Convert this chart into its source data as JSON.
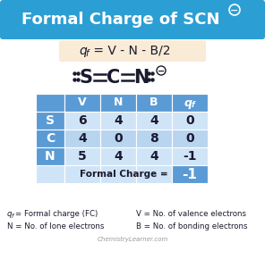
{
  "title": "Formal Charge of SCN",
  "title_superscript": "−",
  "title_bg": "#2b9fd4",
  "title_color": "#ffffff",
  "formula_bg": "#faebd7",
  "white_bg": "#ffffff",
  "table_header_bg": "#5b9bd5",
  "table_row_bg_dark": "#5b9bd5",
  "table_row_bg_light": "#d0e4f7",
  "table_row_bg_alt": "#b8d4ef",
  "table_highlight_bg": "#5b9bd5",
  "table_header_color": "#ffffff",
  "table_data_color": "#1a1a2e",
  "table_headers": [
    "",
    "V",
    "N",
    "B",
    "qf"
  ],
  "table_rows": [
    [
      "S",
      "6",
      "4",
      "4",
      "0"
    ],
    [
      "C",
      "4",
      "0",
      "8",
      "0"
    ],
    [
      "N",
      "5",
      "4",
      "4",
      "-1"
    ]
  ],
  "formal_charge_label": "Formal Charge =",
  "formal_charge_value": "-1",
  "footnote1_left": "q",
  "footnote1_left2": "f",
  "footnote1_left3": " = Formal charge (FC)",
  "footnote1_right": "V = No. of valence electrons",
  "footnote2_left": "N = No. of lone electrons",
  "footnote2_right": "B = No. of bonding electrons",
  "watermark": "ChemistryLearner.com",
  "dot_color": "#1a1a2e",
  "bond_color": "#1a1a2e",
  "text_color": "#1a1a2e"
}
